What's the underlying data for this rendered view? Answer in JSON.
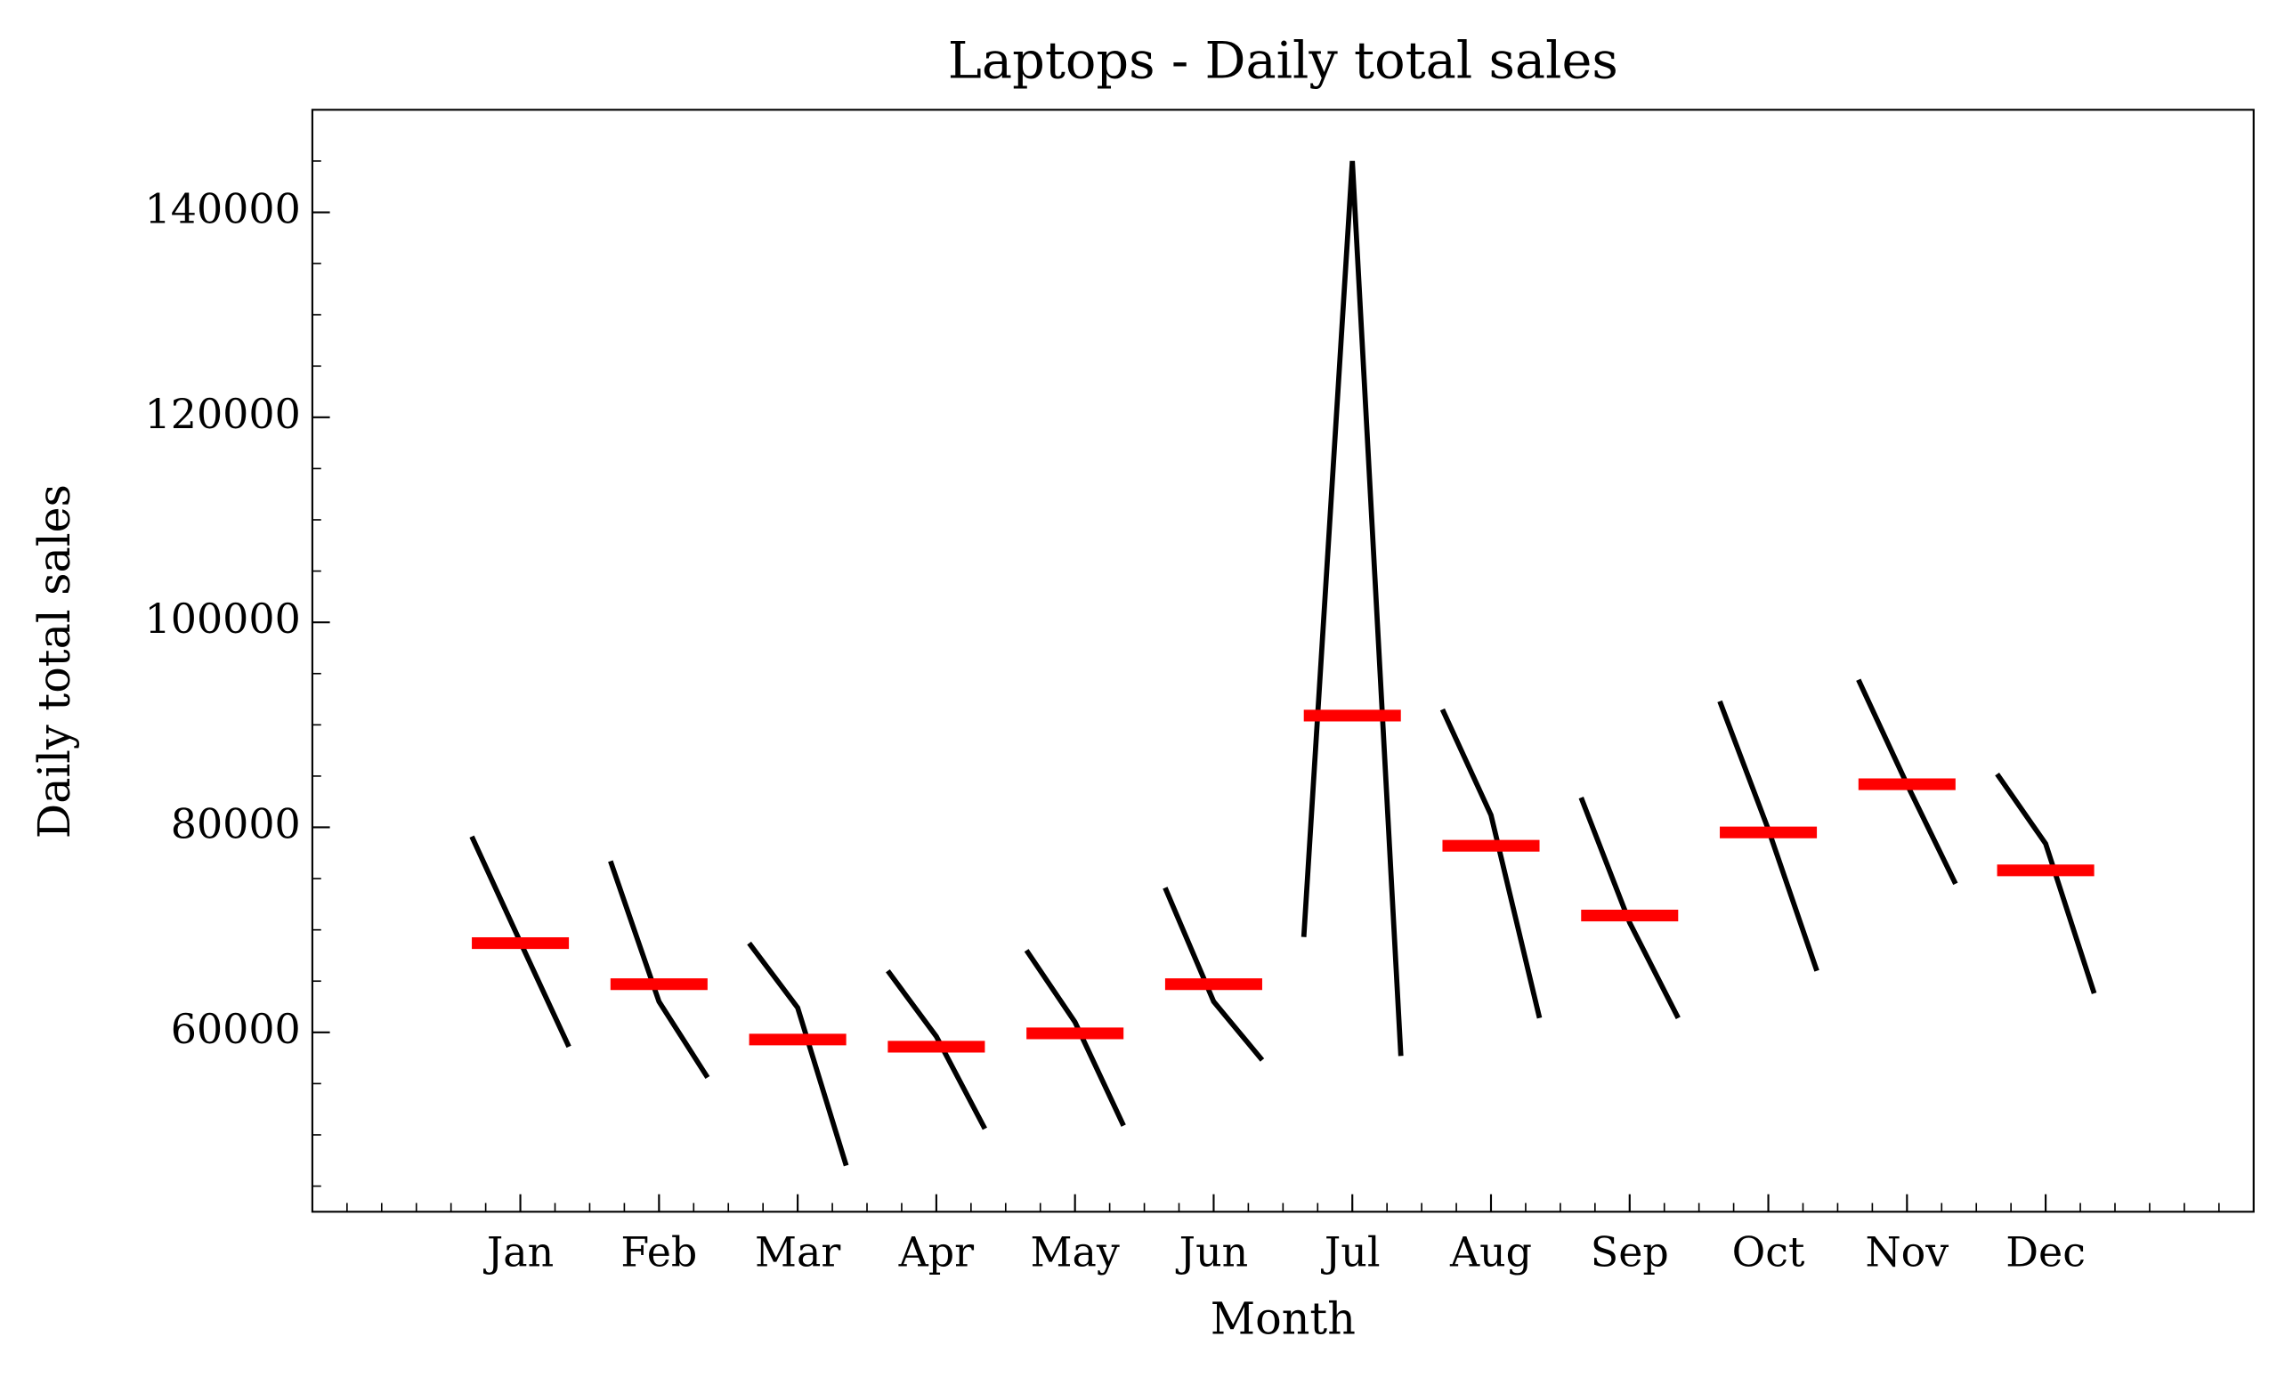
{
  "chart_data": {
    "type": "seasonal",
    "title": "Laptops - Daily total sales",
    "xlabel": "Month",
    "ylabel": "Daily total sales",
    "categories": [
      "Jan",
      "Feb",
      "Mar",
      "Apr",
      "May",
      "Jun",
      "Jul",
      "Aug",
      "Sep",
      "Oct",
      "Nov",
      "Dec"
    ],
    "values": [
      [
        79100,
        68800,
        58600
      ],
      [
        76700,
        63000,
        55600
      ],
      [
        68700,
        62400,
        47000
      ],
      [
        66000,
        59600,
        50600
      ],
      [
        68000,
        61000,
        50900
      ],
      [
        74100,
        63000,
        57300
      ],
      [
        69300,
        145000,
        57700
      ],
      [
        91500,
        81200,
        61400
      ],
      [
        82900,
        70700,
        61400
      ],
      [
        92300,
        79800,
        66000
      ],
      [
        94400,
        84200,
        74500
      ],
      [
        85200,
        78400,
        63800
      ]
    ],
    "means": [
      68700,
      64700,
      59300,
      58600,
      59900,
      64700,
      90900,
      78200,
      71400,
      79500,
      84200,
      75800
    ],
    "color": "#000000",
    "mean_color": "#ff0000",
    "xlim": [
      -1.5,
      12.5
    ],
    "ylim": [
      42500,
      150000
    ],
    "yticks": [
      60000,
      80000,
      100000,
      120000,
      140000
    ],
    "yminor_ticks": [
      45000,
      50000,
      55000,
      65000,
      70000,
      75000,
      85000,
      90000,
      95000,
      105000,
      110000,
      115000,
      125000,
      130000,
      135000,
      145000
    ]
  }
}
